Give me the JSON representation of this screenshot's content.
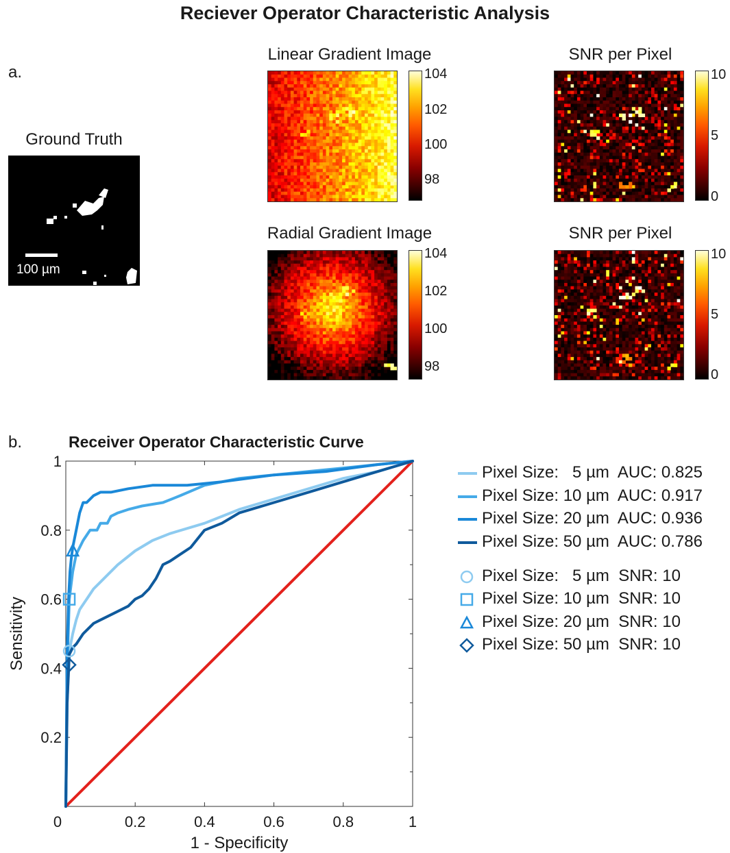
{
  "title": "Reciever Operator Characteristic Analysis",
  "panel_a": {
    "letter": "a.",
    "ground_truth": {
      "title": "Ground Truth",
      "scale_label": "100 µm"
    },
    "images": [
      {
        "title": "Linear Gradient Image",
        "colorbar_ticks": [
          "104",
          "102",
          "100",
          "98"
        ]
      },
      {
        "title": "SNR per Pixel",
        "colorbar_ticks": [
          "10",
          "5",
          "0"
        ]
      },
      {
        "title": "Radial Gradient Image",
        "colorbar_ticks": [
          "104",
          "102",
          "100",
          "98"
        ]
      },
      {
        "title": "SNR per Pixel",
        "colorbar_ticks": [
          "10",
          "5",
          "0"
        ]
      }
    ]
  },
  "panel_b": {
    "letter": "b."
  },
  "colors": {
    "px5": "#8ecbf0",
    "px10": "#45aae8",
    "px20": "#1a88d8",
    "px50": "#0f5a9c",
    "chance": "#e3211c"
  },
  "chart_data": {
    "type": "line",
    "title": "Receiver Operator Characteristic Curve",
    "xlabel": "1 - Specificity",
    "ylabel": "Sensitivity",
    "xlim": [
      0,
      1
    ],
    "ylim": [
      0,
      1
    ],
    "xticks": [
      "0",
      "0.2",
      "0.4",
      "0.6",
      "0.8",
      "1"
    ],
    "yticks": [
      "0",
      "0.2",
      "0.4",
      "0.6",
      "0.8",
      "1"
    ],
    "grid": false,
    "legend_position": "right, outside",
    "series": [
      {
        "name": "Pixel Size:   5 µm  AUC: 0.825",
        "color_key": "px5",
        "x": [
          0,
          0.004,
          0.01,
          0.02,
          0.03,
          0.04,
          0.06,
          0.08,
          0.1,
          0.12,
          0.15,
          0.2,
          0.25,
          0.3,
          0.4,
          0.5,
          0.6,
          0.7,
          0.8,
          0.9,
          1.0
        ],
        "y": [
          0,
          0.3,
          0.45,
          0.5,
          0.54,
          0.57,
          0.6,
          0.63,
          0.65,
          0.67,
          0.7,
          0.74,
          0.77,
          0.79,
          0.82,
          0.86,
          0.89,
          0.92,
          0.95,
          0.97,
          1.0
        ]
      },
      {
        "name": "Pixel Size: 10 µm  AUC: 0.917",
        "color_key": "px10",
        "x": [
          0,
          0.004,
          0.01,
          0.02,
          0.03,
          0.05,
          0.07,
          0.09,
          0.1,
          0.12,
          0.13,
          0.15,
          0.18,
          0.22,
          0.28,
          0.33,
          0.4,
          0.5,
          0.6,
          0.7,
          0.8,
          0.9,
          1.0
        ],
        "y": [
          0,
          0.4,
          0.6,
          0.68,
          0.73,
          0.77,
          0.8,
          0.8,
          0.82,
          0.82,
          0.84,
          0.85,
          0.86,
          0.87,
          0.88,
          0.9,
          0.93,
          0.95,
          0.96,
          0.97,
          0.98,
          0.99,
          1.0
        ]
      },
      {
        "name": "Pixel Size: 20 µm  AUC: 0.936",
        "color_key": "px20",
        "x": [
          0,
          0.004,
          0.008,
          0.012,
          0.016,
          0.02,
          0.03,
          0.04,
          0.05,
          0.06,
          0.08,
          0.1,
          0.13,
          0.18,
          0.25,
          0.35,
          0.45,
          0.6,
          0.75,
          0.9,
          1.0
        ],
        "y": [
          0,
          0.45,
          0.6,
          0.68,
          0.72,
          0.75,
          0.8,
          0.85,
          0.88,
          0.88,
          0.9,
          0.91,
          0.91,
          0.92,
          0.93,
          0.93,
          0.94,
          0.96,
          0.97,
          0.99,
          1.0
        ]
      },
      {
        "name": "Pixel Size: 50 µm  AUC: 0.786",
        "color_key": "px50",
        "x": [
          0,
          0.004,
          0.01,
          0.02,
          0.03,
          0.05,
          0.08,
          0.1,
          0.14,
          0.18,
          0.2,
          0.22,
          0.24,
          0.26,
          0.28,
          0.3,
          0.33,
          0.36,
          0.4,
          0.45,
          0.5,
          0.6,
          0.7,
          0.8,
          0.9,
          1.0
        ],
        "y": [
          0,
          0.3,
          0.44,
          0.46,
          0.47,
          0.5,
          0.53,
          0.54,
          0.56,
          0.58,
          0.6,
          0.61,
          0.63,
          0.66,
          0.7,
          0.71,
          0.73,
          0.75,
          0.8,
          0.82,
          0.85,
          0.88,
          0.91,
          0.94,
          0.97,
          1.0
        ]
      },
      {
        "name": "chance",
        "color_key": "chance",
        "x": [
          0,
          1
        ],
        "y": [
          0,
          1
        ]
      }
    ],
    "markers": [
      {
        "name": "Pixel Size:   5 µm  SNR: 10",
        "shape": "circle",
        "color_key": "px5",
        "x": 0.01,
        "y": 0.45
      },
      {
        "name": "Pixel Size: 10 µm  SNR: 10",
        "shape": "square",
        "color_key": "px10",
        "x": 0.01,
        "y": 0.6
      },
      {
        "name": "Pixel Size: 20 µm  SNR: 10",
        "shape": "triangle",
        "color_key": "px20",
        "x": 0.02,
        "y": 0.74
      },
      {
        "name": "Pixel Size: 50 µm  SNR: 10",
        "shape": "diamond",
        "color_key": "px50",
        "x": 0.01,
        "y": 0.41
      }
    ]
  }
}
